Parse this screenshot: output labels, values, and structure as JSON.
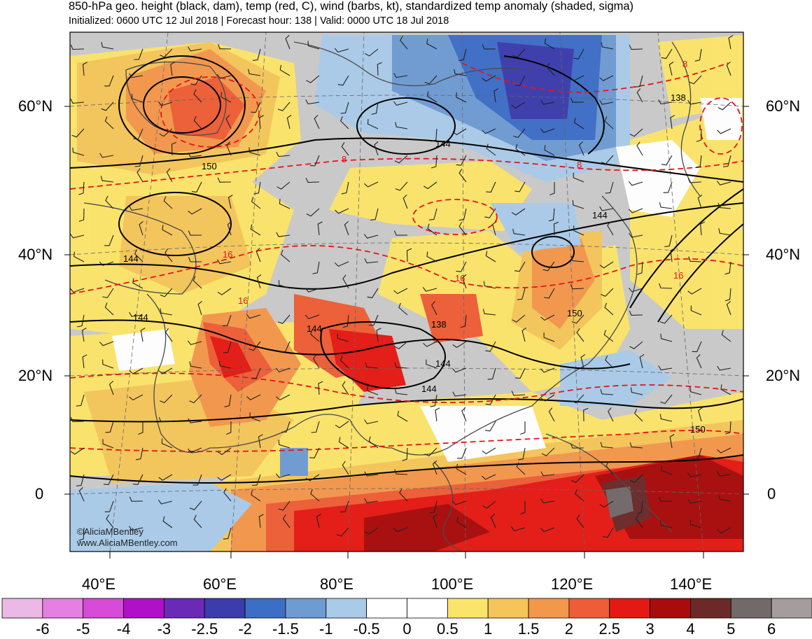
{
  "header": {
    "title": "850-hPa geo. height (black, dam), temp (red, C), wind (barbs, kt), standardized temp anomaly (shaded, sigma)",
    "subtitle": "Initialized: 0600 UTC 12 Jul 2018 | Forecast hour: 138 | Valid: 0000 UTC 18 Jul 2018"
  },
  "map": {
    "lat_labels": [
      "60°N",
      "40°N",
      "20°N",
      "0"
    ],
    "lon_labels": [
      "40°E",
      "60°E",
      "80°E",
      "100°E",
      "120°E",
      "140°E"
    ],
    "contour_labels_height": [
      "150",
      "144",
      "144",
      "144",
      "144",
      "138",
      "144",
      "144",
      "150",
      "150",
      "138",
      "144"
    ],
    "contour_labels_temp": [
      "8",
      "8",
      "16",
      "16",
      "16",
      "16",
      "8"
    ],
    "credit": [
      "©AliciaMBentley",
      "www.AliciaMBentley.com"
    ],
    "colors": {
      "height_contour": "#000000",
      "temp_contour": "#e8141a",
      "coastline": "#555555"
    }
  },
  "colorbar": {
    "labels": [
      "-6",
      "-5",
      "-4",
      "-3",
      "-2.5",
      "-2",
      "-1.5",
      "-1",
      "-0.5",
      "0",
      "0.5",
      "1",
      "1.5",
      "2",
      "2.5",
      "3",
      "4",
      "5",
      "6"
    ],
    "colors": [
      "#ebb9e6",
      "#e57fe1",
      "#d84ad8",
      "#b010c7",
      "#6b29b8",
      "#3c3cad",
      "#3d6ec6",
      "#6f9bd3",
      "#a9cbe8",
      "#ffffff",
      "#ffffff",
      "#fbe46a",
      "#f5c55a",
      "#f3974b",
      "#ee5d36",
      "#e51913",
      "#a80c0c",
      "#6b2a28",
      "#726a69",
      "#a59d9d"
    ]
  }
}
